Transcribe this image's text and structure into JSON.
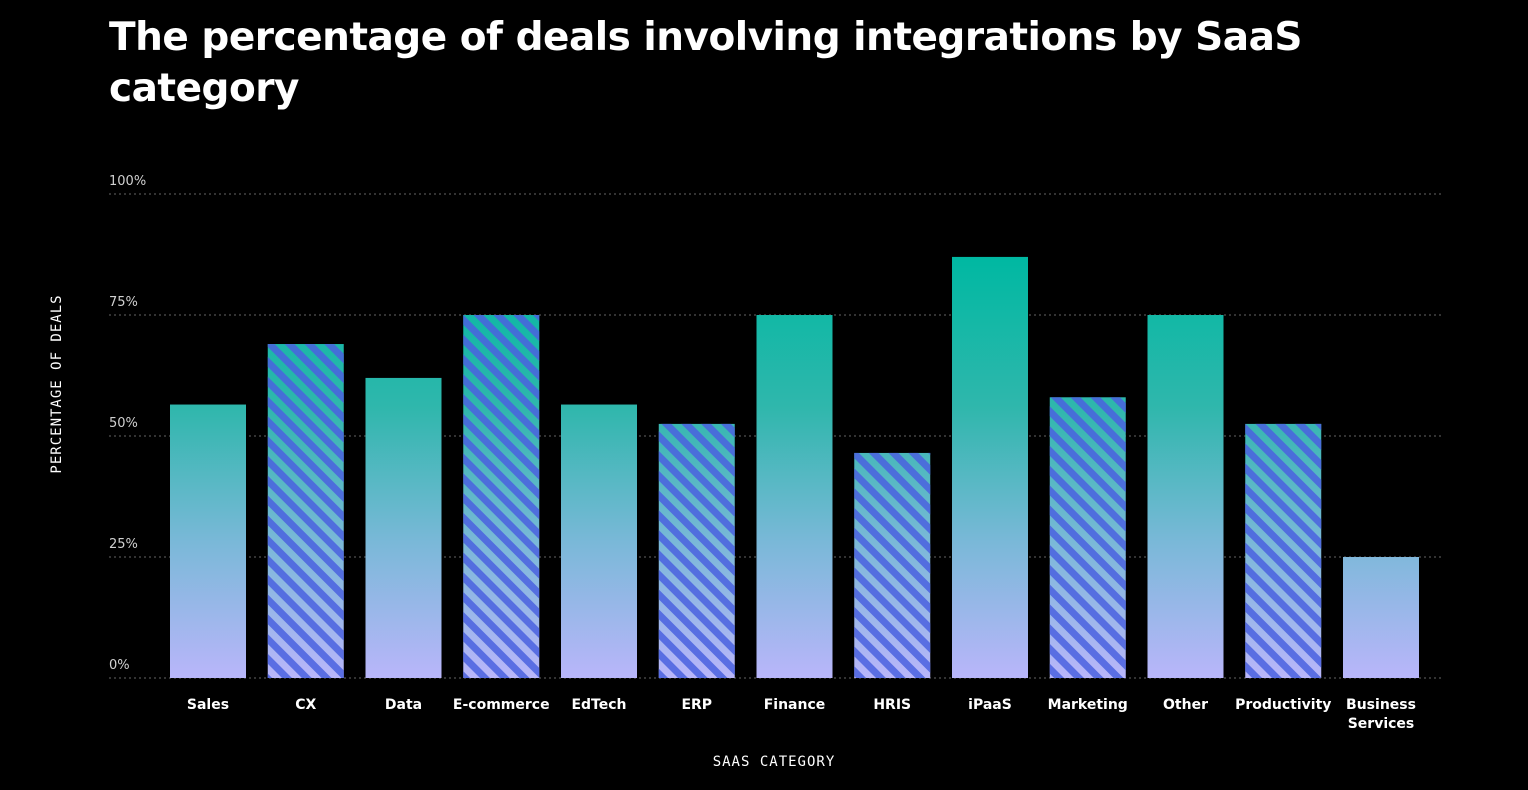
{
  "chart_data": {
    "type": "bar",
    "title": "The percentage of deals involving integrations by SaaS category",
    "xlabel": "SAAS CATEGORY",
    "ylabel": "PERCENTAGE OF DEALS",
    "ylim": [
      0,
      100
    ],
    "yticks": [
      0,
      25,
      50,
      75,
      100
    ],
    "ytick_labels": [
      "0%",
      "25%",
      "50%",
      "75%",
      "100%"
    ],
    "grid": true,
    "categories": [
      "Sales",
      "CX",
      "Data",
      "E-commerce",
      "EdTech",
      "ERP",
      "Finance",
      "HRIS",
      "iPaaS",
      "Marketing",
      "Other",
      "Productivity",
      "Business Services"
    ],
    "values": [
      56.5,
      69,
      62,
      75,
      56.5,
      52.5,
      75,
      46.5,
      87,
      58,
      75,
      52.5,
      25
    ],
    "bar_styles": [
      "solid",
      "striped",
      "solid",
      "striped",
      "solid",
      "striped",
      "solid",
      "striped",
      "solid",
      "striped",
      "solid",
      "striped",
      "solid"
    ],
    "colors": {
      "background": "#000000",
      "bar_top": "#00b8a2",
      "bar_bottom": "#b9b6fa",
      "stripe": "#4a62e0",
      "grid": "#666666"
    }
  }
}
